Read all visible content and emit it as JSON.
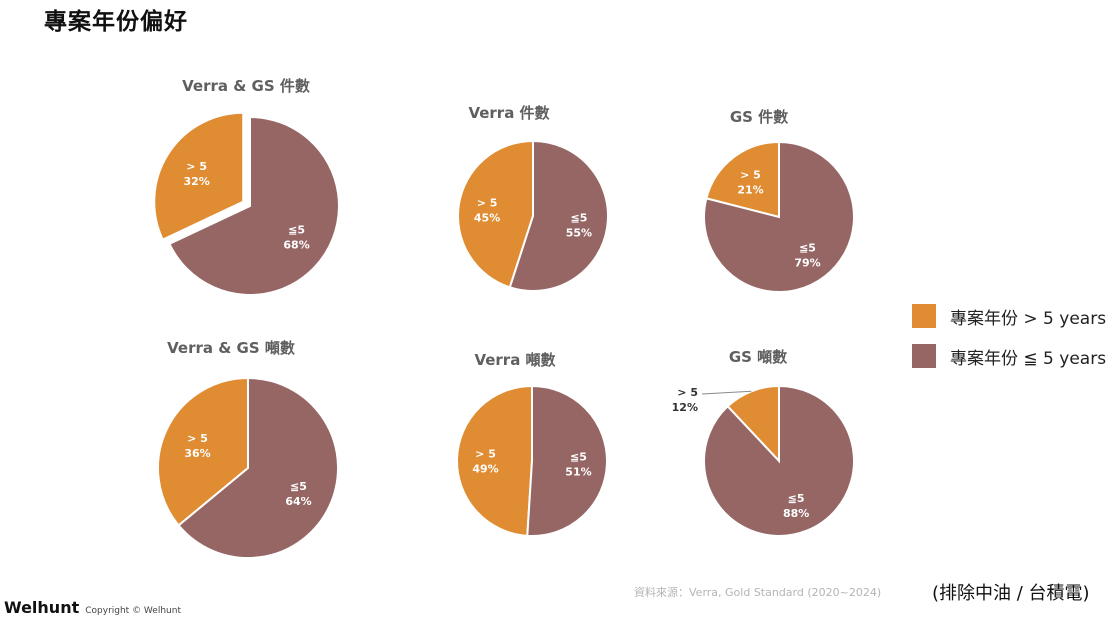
{
  "page": {
    "title": "專案年份偏好"
  },
  "legend": {
    "items": [
      {
        "label": "專案年份 > 5 years",
        "color": "#E08C33"
      },
      {
        "label": "專案年份 ≦ 5 years",
        "color": "#966665"
      }
    ]
  },
  "colors": {
    "gt5": "#E08C33",
    "le5": "#966665"
  },
  "chart_data": [
    {
      "type": "pie",
      "title": "Verra & GS 件數",
      "categories": [
        "> 5",
        "≦5"
      ],
      "values": [
        32,
        68
      ],
      "labels": [
        "32%",
        "68%"
      ]
    },
    {
      "type": "pie",
      "title": "Verra 件數",
      "categories": [
        "> 5",
        "≦5"
      ],
      "values": [
        45,
        55
      ],
      "labels": [
        "45%",
        "55%"
      ]
    },
    {
      "type": "pie",
      "title": "GS 件數",
      "categories": [
        "> 5",
        "≦5"
      ],
      "values": [
        21,
        79
      ],
      "labels": [
        "21%",
        "79%"
      ]
    },
    {
      "type": "pie",
      "title": "Verra & GS 噸數",
      "categories": [
        "> 5",
        "≦5"
      ],
      "values": [
        36,
        64
      ],
      "labels": [
        "36%",
        "64%"
      ]
    },
    {
      "type": "pie",
      "title": "Verra 噸數",
      "categories": [
        "> 5",
        "≦5"
      ],
      "values": [
        49,
        51
      ],
      "labels": [
        "49%",
        "51%"
      ]
    },
    {
      "type": "pie",
      "title": "GS 噸數",
      "categories": [
        "> 5",
        "≦5"
      ],
      "values": [
        12,
        88
      ],
      "labels": [
        "12%",
        "88%"
      ]
    }
  ],
  "footer": {
    "source": "資料來源：Verra, Gold Standard (2020~2024)",
    "note": "(排除中油 / 台積電)",
    "brand": "Welhunt",
    "copyright": "Copyright © Welhunt"
  }
}
